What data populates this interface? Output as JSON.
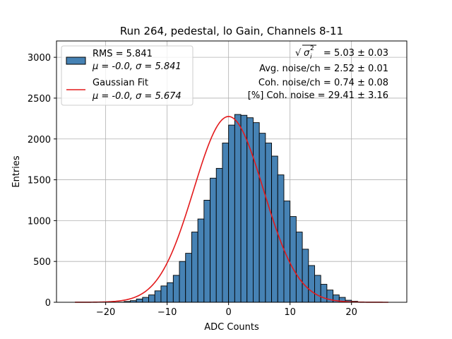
{
  "chart_data": {
    "type": "bar",
    "title": "Run 264, pedestal, lo Gain, Channels 8-11",
    "xlabel": "ADC Counts",
    "ylabel": "Entries",
    "xlim": [
      -28,
      29
    ],
    "ylim": [
      0,
      3200
    ],
    "xticks": [
      -20,
      -10,
      0,
      10,
      20
    ],
    "xtick_labels": [
      "−20",
      "−10",
      "0",
      "10",
      "20"
    ],
    "yticks": [
      0,
      500,
      1000,
      1500,
      2000,
      2500,
      3000
    ],
    "ytick_labels": [
      "0",
      "500",
      "1000",
      "1500",
      "2000",
      "2500",
      "3000"
    ],
    "grid": true,
    "bin_edges_start": -25,
    "bin_width": 1,
    "series": [
      {
        "name": "RMS = 5.841",
        "name_line2": "μ = -0.0, σ = 5.841",
        "kind": "histogram",
        "color": "#4682b4",
        "edgecolor": "#000000",
        "values": [
          0,
          0,
          0,
          0,
          0,
          0,
          0,
          2,
          10,
          20,
          40,
          60,
          90,
          140,
          200,
          240,
          330,
          500,
          600,
          860,
          1020,
          1250,
          1520,
          1640,
          1950,
          2170,
          2300,
          2290,
          2260,
          2200,
          2070,
          1950,
          1790,
          1560,
          1240,
          1050,
          860,
          650,
          450,
          330,
          220,
          150,
          90,
          60,
          25,
          12,
          5,
          0,
          0,
          0,
          0,
          0
        ]
      },
      {
        "name": "Gaussian Fit",
        "name_line2": "μ = -0.0, σ = 5.674",
        "kind": "line",
        "color": "#e31a1c",
        "mu": 0.0,
        "sigma": 5.674,
        "amplitude": 2275,
        "x_range": [
          -25,
          26
        ]
      }
    ],
    "legend_position": "upper left",
    "annotations": [
      {
        "prefix": "",
        "value": " = 5.03 ± 0.03",
        "position": "upper right"
      },
      {
        "text": "Avg. noise/ch = 2.52 ± 0.01",
        "position": "upper right"
      },
      {
        "text": "Coh. noise/ch = 0.74 ± 0.08",
        "position": "upper right"
      },
      {
        "text": "[%] Coh. noise = 29.41 ± 3.16",
        "position": "upper right"
      }
    ]
  }
}
